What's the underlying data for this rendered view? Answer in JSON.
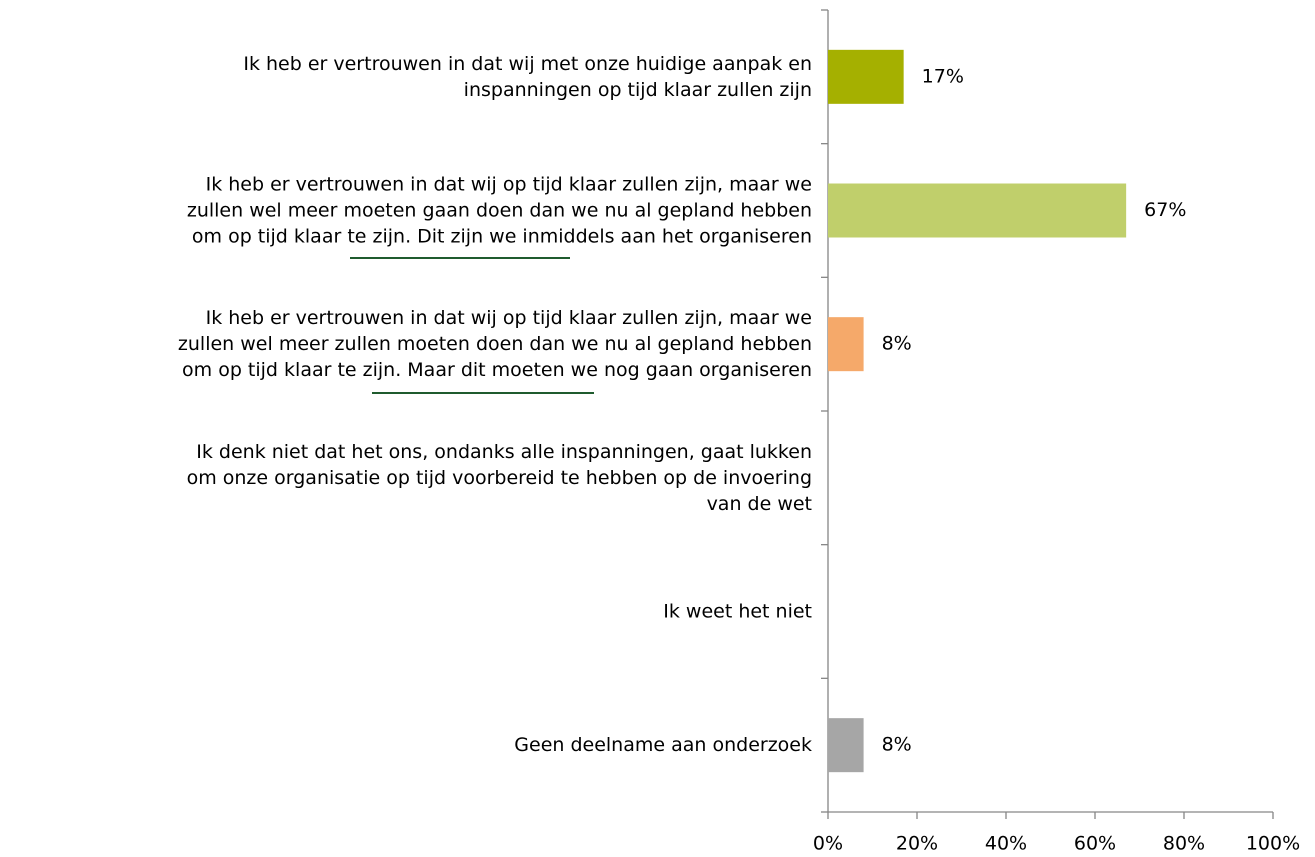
{
  "chart_data": {
    "type": "hbar",
    "categories": [
      "Ik heb er vertrouwen in dat wij met onze huidige aanpak en\ninspanningen op tijd klaar zullen zijn",
      "Ik heb er vertrouwen in dat wij op tijd klaar zullen zijn, maar we\nzullen wel meer moeten gaan doen dan we nu al gepland hebben\nom op tijd klaar te zijn. Dit zijn we inmiddels aan het organiseren",
      "Ik heb er vertrouwen in dat wij op tijd klaar zullen zijn, maar we\nzullen wel meer zullen moeten doen dan we nu al gepland hebben\nom op tijd klaar te zijn. Maar dit moeten we nog gaan organiseren",
      "Ik denk niet dat het ons, ondanks alle inspanningen, gaat lukken\nom onze organisatie op tijd voorbereid te hebben op de invoering\nvan de wet",
      "Ik weet het niet",
      "Geen deelname aan onderzoek"
    ],
    "values": [
      17,
      67,
      8,
      null,
      null,
      8
    ],
    "value_labels": [
      "17%",
      "67%",
      "8%",
      null,
      null,
      "8%"
    ],
    "colors": [
      "#a5b000",
      "#c0cf6b",
      "#f5a96a",
      null,
      null,
      "#a6a6a6"
    ],
    "xlim": [
      0,
      100
    ],
    "xticks": [
      {
        "value": 0,
        "label": "0%"
      },
      {
        "value": 20,
        "label": "20%"
      },
      {
        "value": 40,
        "label": "40%"
      },
      {
        "value": 60,
        "label": "60%"
      },
      {
        "value": 80,
        "label": "80%"
      },
      {
        "value": 100,
        "label": "100%"
      }
    ]
  }
}
